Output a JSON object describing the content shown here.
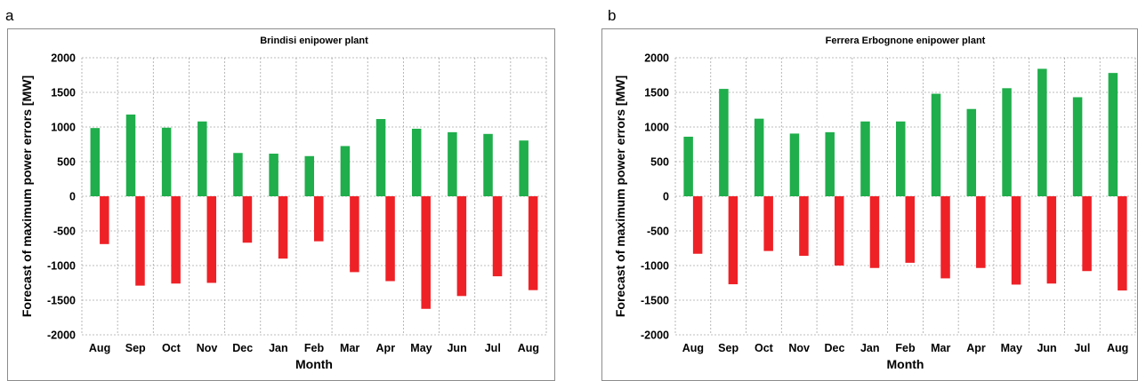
{
  "panels": [
    {
      "letter": "a",
      "chart_data": {
        "type": "bar",
        "title": "Brindisi  enipower plant",
        "xlabel": "Month",
        "ylabel": "Forecast of maximum power errors [MW]",
        "ylim": [
          -2000,
          2000
        ],
        "yticks": [
          2000,
          1500,
          1000,
          500,
          0,
          -500,
          -1000,
          -1500,
          -2000
        ],
        "grid": true,
        "categories": [
          "Aug",
          "Sep",
          "Oct",
          "Nov",
          "Dec",
          "Jan",
          "Feb",
          "Mar",
          "Apr",
          "May",
          "Jun",
          "Jul",
          "Aug"
        ],
        "series": [
          {
            "color": "#1fae4b",
            "values": [
              985,
              1180,
              990,
              1080,
              625,
              615,
              580,
              725,
              1115,
              975,
              925,
              900,
              805
            ]
          },
          {
            "color": "#ee2127",
            "values": [
              -690,
              -1290,
              -1260,
              -1250,
              -670,
              -900,
              -650,
              -1095,
              -1225,
              -1625,
              -1440,
              -1155,
              -1355
            ]
          }
        ]
      }
    },
    {
      "letter": "b",
      "chart_data": {
        "type": "bar",
        "title": "Ferrera Erbognone  enipower plant",
        "xlabel": "Month",
        "ylabel": "Forecast of maximum power errors [MW]",
        "ylim": [
          -2000,
          2000
        ],
        "yticks": [
          2000,
          1500,
          1000,
          500,
          0,
          -500,
          -1000,
          -1500,
          -2000
        ],
        "grid": true,
        "categories": [
          "Aug",
          "Sep",
          "Oct",
          "Nov",
          "Dec",
          "Jan",
          "Feb",
          "Mar",
          "Apr",
          "May",
          "Jun",
          "Jul",
          "Aug"
        ],
        "series": [
          {
            "color": "#1fae4b",
            "values": [
              860,
              1550,
              1120,
              905,
              925,
              1080,
              1080,
              1480,
              1260,
              1560,
              1840,
              1430,
              1780
            ]
          },
          {
            "color": "#ee2127",
            "values": [
              -830,
              -1270,
              -790,
              -860,
              -1000,
              -1035,
              -960,
              -1185,
              -1035,
              -1275,
              -1260,
              -1080,
              -1360
            ]
          }
        ]
      }
    }
  ]
}
